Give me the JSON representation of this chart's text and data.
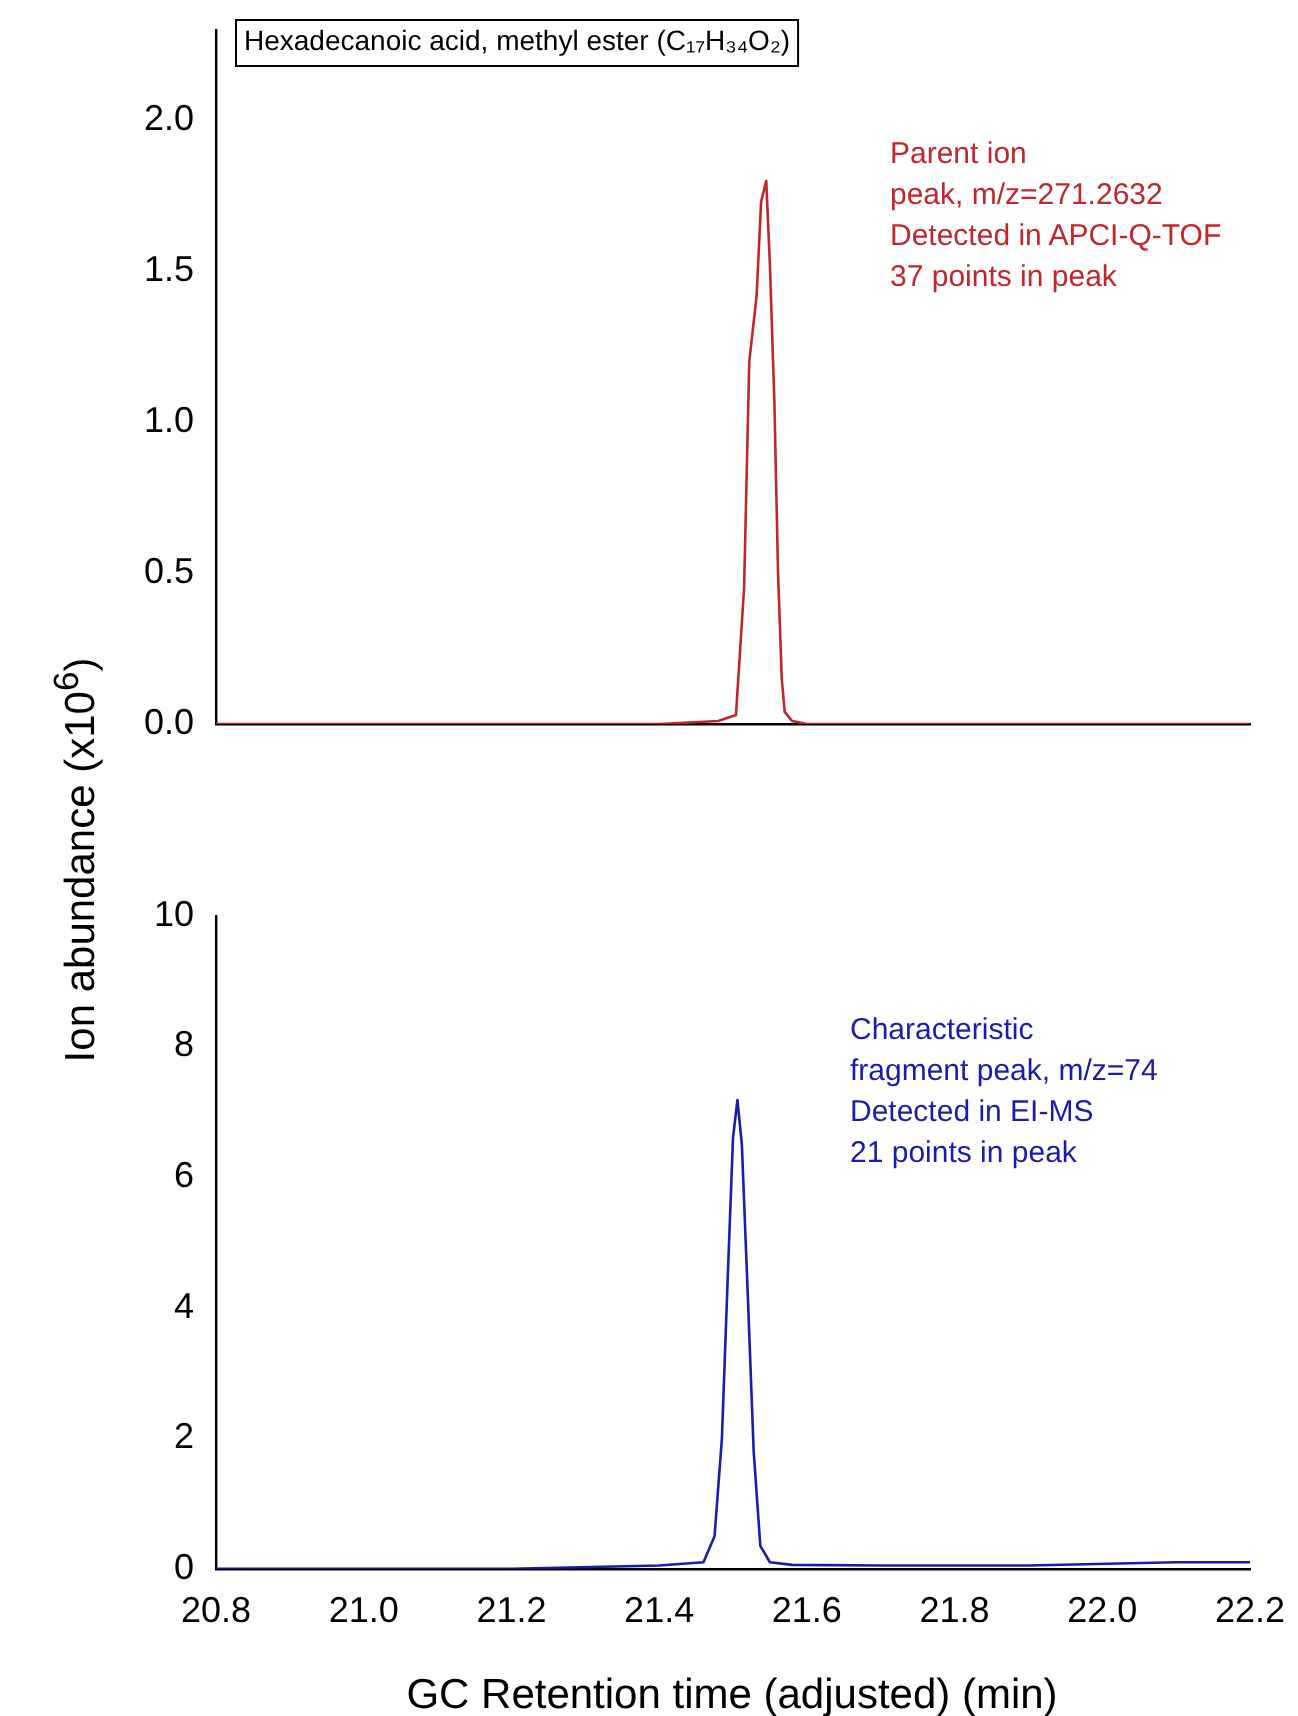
{
  "chart_data": [
    {
      "type": "line",
      "ylabel": "Ion abundance (x10$^{6}$)",
      "annotations": [
        "Hexadecanoic acid, methyl ester (C₁₇H₃₄O₂)",
        "Parent ion\npeak, m/z=271.2632\nDetected in APCI-Q-TOF\n37 points in peak"
      ],
      "series": [
        {
          "color": "#c0272d",
          "x": [
            20.8,
            21.0,
            21.2,
            21.4,
            21.48,
            21.504,
            21.515,
            21.522,
            21.527,
            21.532,
            21.538,
            21.545,
            21.55,
            21.556,
            21.561,
            21.566,
            21.57,
            21.58,
            21.6,
            21.8,
            22.0,
            22.2
          ],
          "values": [
            0.0,
            0.0,
            0.0,
            0.0,
            0.01,
            0.03,
            0.45,
            1.2,
            1.31,
            1.42,
            1.73,
            1.8,
            1.52,
            1.07,
            0.5,
            0.15,
            0.04,
            0.01,
            0.0,
            0.0,
            0.0,
            0.0
          ]
        }
      ],
      "xlim": [
        20.8,
        22.2
      ],
      "ylim": [
        0,
        2.3
      ],
      "yticks": [
        {
          "value": 0,
          "label": "0.0"
        },
        {
          "value": 0.5,
          "label": "0.5"
        },
        {
          "value": 1,
          "label": "1.0"
        },
        {
          "value": 1.5,
          "label": "1.5"
        },
        {
          "value": 2,
          "label": "2.0"
        }
      ],
      "tick_labels": "y",
      "grid": false,
      "legend": false,
      "marker": "none",
      "line_style": "solid"
    },
    {
      "type": "line",
      "xlabel": "GC Retention time (adjusted) (min)",
      "annotations": [
        "Characteristic\nfragment peak, m/z=74\nDetected in EI-MS\n21 points in peak"
      ],
      "series": [
        {
          "color": "#1c1ca8",
          "x": [
            20.8,
            21.0,
            21.2,
            21.4,
            21.46,
            21.475,
            21.485,
            21.493,
            21.5,
            21.506,
            21.512,
            21.52,
            21.528,
            21.537,
            21.55,
            21.58,
            21.7,
            21.9,
            22.1,
            22.2
          ],
          "values": [
            0.0,
            0.0,
            0.0,
            0.05,
            0.1,
            0.5,
            2.0,
            4.5,
            6.6,
            7.18,
            6.5,
            4.2,
            1.8,
            0.35,
            0.1,
            0.06,
            0.05,
            0.05,
            0.1,
            0.1
          ]
        }
      ],
      "xlim": [
        20.8,
        22.2
      ],
      "ylim": [
        0,
        10
      ],
      "xticks": [
        {
          "value": 20.8,
          "label": "20.8"
        },
        {
          "value": 21.0,
          "label": "21.0"
        },
        {
          "value": 21.2,
          "label": "21.2"
        },
        {
          "value": 21.4,
          "label": "21.4"
        },
        {
          "value": 21.6,
          "label": "21.6"
        },
        {
          "value": 21.8,
          "label": "21.8"
        },
        {
          "value": 22.0,
          "label": "22.0"
        },
        {
          "value": 22.2,
          "label": "22.2"
        }
      ],
      "yticks": [
        0,
        2,
        4,
        6,
        8,
        10
      ],
      "grid": false,
      "legend": false,
      "marker": "none",
      "line_style": "solid"
    }
  ]
}
